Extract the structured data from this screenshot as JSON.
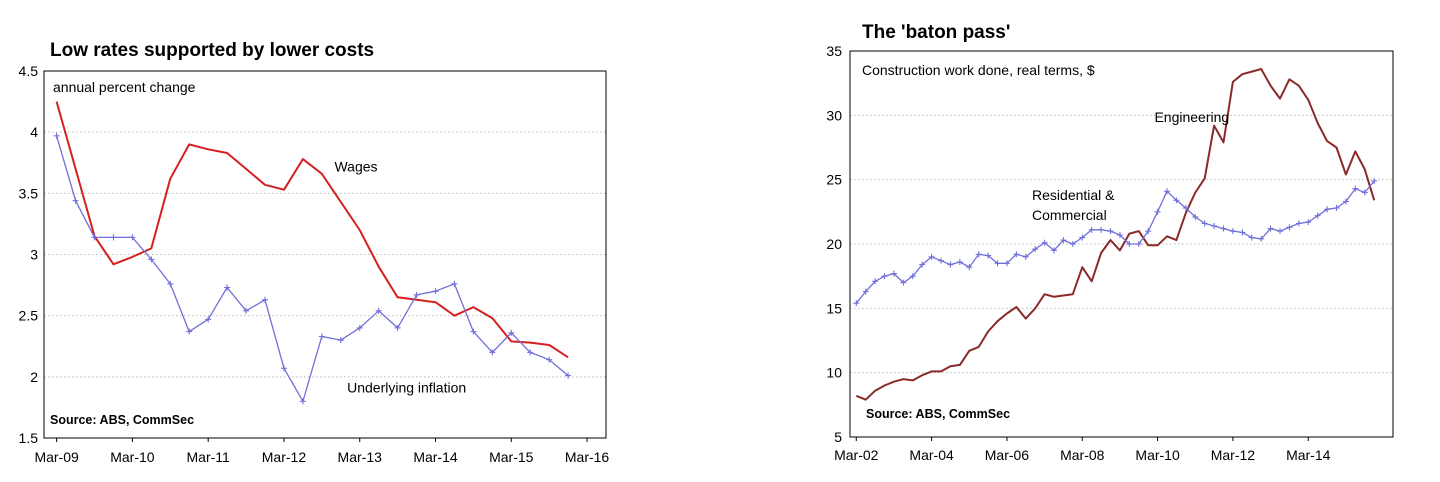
{
  "chart_data": [
    {
      "type": "line",
      "title": "Low rates supported by lower costs",
      "unit_note": "annual percent change",
      "source": "Source: ABS, CommSec",
      "x_tick_labels": [
        "Mar-09",
        "Mar-10",
        "Mar-11",
        "Mar-12",
        "Mar-13",
        "Mar-14",
        "Mar-15",
        "Mar-16"
      ],
      "y_tick_labels": [
        "4.5",
        "4",
        "3.5",
        "3",
        "2.5",
        "2",
        "1.5"
      ],
      "ylim": [
        1.5,
        4.5
      ],
      "xlim": [
        "2009-01",
        "2016-06"
      ],
      "grid": "horizontal",
      "series": [
        {
          "name": "Wages",
          "color": "#d42020",
          "marker": "none",
          "x": [
            "2009-03",
            "2009-06",
            "2009-09",
            "2009-12",
            "2010-03",
            "2010-06",
            "2010-09",
            "2010-12",
            "2011-03",
            "2011-06",
            "2011-09",
            "2011-12",
            "2012-03",
            "2012-06",
            "2012-09",
            "2012-12",
            "2013-03",
            "2013-06",
            "2013-09",
            "2013-12",
            "2014-03",
            "2014-06",
            "2014-09",
            "2014-12",
            "2015-03",
            "2015-06",
            "2015-09",
            "2015-12"
          ],
          "values": [
            4.25,
            3.7,
            3.15,
            2.92,
            2.98,
            3.05,
            3.62,
            3.9,
            3.86,
            3.83,
            3.7,
            3.57,
            3.53,
            3.78,
            3.66,
            3.43,
            3.2,
            2.9,
            2.65,
            2.63,
            2.61,
            2.5,
            2.57,
            2.48,
            2.29,
            2.28,
            2.26,
            2.16
          ]
        },
        {
          "name": "Underlying inflation",
          "color": "#7070d8",
          "marker": "plus",
          "x": [
            "2009-03",
            "2009-06",
            "2009-09",
            "2009-12",
            "2010-03",
            "2010-06",
            "2010-09",
            "2010-12",
            "2011-03",
            "2011-06",
            "2011-09",
            "2011-12",
            "2012-03",
            "2012-06",
            "2012-09",
            "2012-12",
            "2013-03",
            "2013-06",
            "2013-09",
            "2013-12",
            "2014-03",
            "2014-06",
            "2014-09",
            "2014-12",
            "2015-03",
            "2015-06",
            "2015-09",
            "2015-12"
          ],
          "values": [
            3.97,
            3.44,
            3.14,
            3.14,
            3.14,
            2.96,
            2.76,
            2.37,
            2.47,
            2.73,
            2.54,
            2.63,
            2.07,
            1.8,
            2.33,
            2.3,
            2.4,
            2.54,
            2.4,
            2.67,
            2.7,
            2.76,
            2.37,
            2.2,
            2.36,
            2.2,
            2.14,
            2.01
          ]
        }
      ],
      "annotations": [
        {
          "text": "Wages",
          "x": "2012-11",
          "y": 3.68
        },
        {
          "text": "Underlying inflation",
          "x": "2013-01",
          "y": 1.87
        }
      ]
    },
    {
      "type": "line",
      "title": "The 'baton pass'",
      "unit_note": "Construction work done, real terms, $",
      "source": "Source: ABS, CommSec",
      "x_tick_labels": [
        "Mar-02",
        "Mar-04",
        "Mar-06",
        "Mar-08",
        "Mar-10",
        "Mar-12",
        "Mar-14"
      ],
      "y_tick_labels": [
        "35",
        "30",
        "25",
        "20",
        "15",
        "10",
        "5"
      ],
      "ylim": [
        5,
        35
      ],
      "xlim": [
        "2002-01",
        "2016-06"
      ],
      "grid": "horizontal",
      "series": [
        {
          "name": "Engineering",
          "color": "#8b2a2a",
          "marker": "none",
          "x": [
            "2002-03",
            "2002-06",
            "2002-09",
            "2002-12",
            "2003-03",
            "2003-06",
            "2003-09",
            "2003-12",
            "2004-03",
            "2004-06",
            "2004-09",
            "2004-12",
            "2005-03",
            "2005-06",
            "2005-09",
            "2005-12",
            "2006-03",
            "2006-06",
            "2006-09",
            "2006-12",
            "2007-03",
            "2007-06",
            "2007-09",
            "2007-12",
            "2008-03",
            "2008-06",
            "2008-09",
            "2008-12",
            "2009-03",
            "2009-06",
            "2009-09",
            "2009-12",
            "2010-03",
            "2010-06",
            "2010-09",
            "2010-12",
            "2011-03",
            "2011-06",
            "2011-09",
            "2011-12",
            "2012-03",
            "2012-06",
            "2012-09",
            "2012-12",
            "2013-03",
            "2013-06",
            "2013-09",
            "2013-12",
            "2014-03",
            "2014-06",
            "2014-09",
            "2014-12",
            "2015-03",
            "2015-06",
            "2015-09",
            "2015-12"
          ],
          "values": [
            8.2,
            7.9,
            8.6,
            9.0,
            9.3,
            9.5,
            9.4,
            9.8,
            10.1,
            10.1,
            10.5,
            10.6,
            11.7,
            12.0,
            13.2,
            14.0,
            14.6,
            15.1,
            14.2,
            15.0,
            16.1,
            15.9,
            16.0,
            16.1,
            18.2,
            17.1,
            19.3,
            20.3,
            19.5,
            20.8,
            21.0,
            19.9,
            19.9,
            20.6,
            20.3,
            22.4,
            24.0,
            25.1,
            29.2,
            27.9,
            32.6,
            33.2,
            33.4,
            33.6,
            32.3,
            31.3,
            32.8,
            32.3,
            31.2,
            29.4,
            28.0,
            27.5,
            25.4,
            27.2,
            25.8,
            23.4
          ]
        },
        {
          "name": "Residential & Commercial",
          "color": "#7070d8",
          "marker": "plus",
          "x": [
            "2002-03",
            "2002-06",
            "2002-09",
            "2002-12",
            "2003-03",
            "2003-06",
            "2003-09",
            "2003-12",
            "2004-03",
            "2004-06",
            "2004-09",
            "2004-12",
            "2005-03",
            "2005-06",
            "2005-09",
            "2005-12",
            "2006-03",
            "2006-06",
            "2006-09",
            "2006-12",
            "2007-03",
            "2007-06",
            "2007-09",
            "2007-12",
            "2008-03",
            "2008-06",
            "2008-09",
            "2008-12",
            "2009-03",
            "2009-06",
            "2009-09",
            "2009-12",
            "2010-03",
            "2010-06",
            "2010-09",
            "2010-12",
            "2011-03",
            "2011-06",
            "2011-09",
            "2011-12",
            "2012-03",
            "2012-06",
            "2012-09",
            "2012-12",
            "2013-03",
            "2013-06",
            "2013-09",
            "2013-12",
            "2014-03",
            "2014-06",
            "2014-09",
            "2014-12",
            "2015-03",
            "2015-06",
            "2015-09",
            "2015-12"
          ],
          "values": [
            15.4,
            16.3,
            17.1,
            17.5,
            17.7,
            17.0,
            17.5,
            18.4,
            19.0,
            18.7,
            18.4,
            18.6,
            18.2,
            19.2,
            19.1,
            18.5,
            18.5,
            19.2,
            19.0,
            19.6,
            20.1,
            19.5,
            20.3,
            20.0,
            20.5,
            21.1,
            21.1,
            21.0,
            20.7,
            20.0,
            20.0,
            21.0,
            22.5,
            24.1,
            23.4,
            22.8,
            22.1,
            21.6,
            21.4,
            21.2,
            21.0,
            20.9,
            20.5,
            20.4,
            21.2,
            21.0,
            21.3,
            21.6,
            21.7,
            22.2,
            22.7,
            22.8,
            23.3,
            24.3,
            24.0,
            24.9
          ]
        }
      ],
      "annotations": [
        {
          "text": "Engineering",
          "x": "2010-02",
          "y": 29.5
        },
        {
          "text": "Residential & Commercial",
          "x": "2006-11",
          "y": 22.5
        }
      ]
    }
  ]
}
